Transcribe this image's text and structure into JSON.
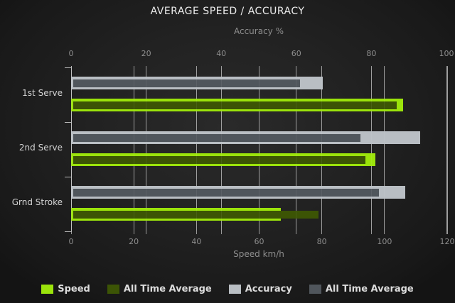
{
  "chart_data": {
    "type": "bar",
    "orientation": "horizontal",
    "title": "AVERAGE SPEED / ACCURACY",
    "categories": [
      "1st Serve",
      "2nd Serve",
      "Grnd Stroke"
    ],
    "series": [
      {
        "name": "Speed",
        "axis": "speed",
        "role": "current",
        "color": "#9bе30b",
        "values": [
          106,
          97,
          67
        ]
      },
      {
        "name": "All Time Average",
        "axis": "speed",
        "role": "average",
        "color": "#3c5405",
        "values": [
          104,
          94,
          79
        ]
      },
      {
        "name": "Accuracy",
        "axis": "accuracy",
        "role": "current",
        "color": "#b9bec3",
        "values": [
          67,
          93,
          89
        ]
      },
      {
        "name": "All Time Average",
        "axis": "accuracy",
        "role": "average",
        "color": "#50565c",
        "values": [
          61,
          77,
          82
        ]
      }
    ],
    "series_colors": [
      "#9be30b",
      "#3c5405",
      "#b9bec3",
      "#50565c"
    ],
    "top_axis": {
      "label": "Accuracy %",
      "min": 0,
      "max": 100,
      "ticks": [
        0,
        20,
        40,
        60,
        80,
        100
      ]
    },
    "bottom_axis": {
      "label": "Speed km/h",
      "min": 0,
      "max": 120,
      "ticks": [
        0,
        20,
        40,
        60,
        80,
        100,
        120
      ]
    },
    "grid": true,
    "legend_position": "bottom",
    "grid_color": "#989898",
    "background_color": "#1e1e1e"
  }
}
